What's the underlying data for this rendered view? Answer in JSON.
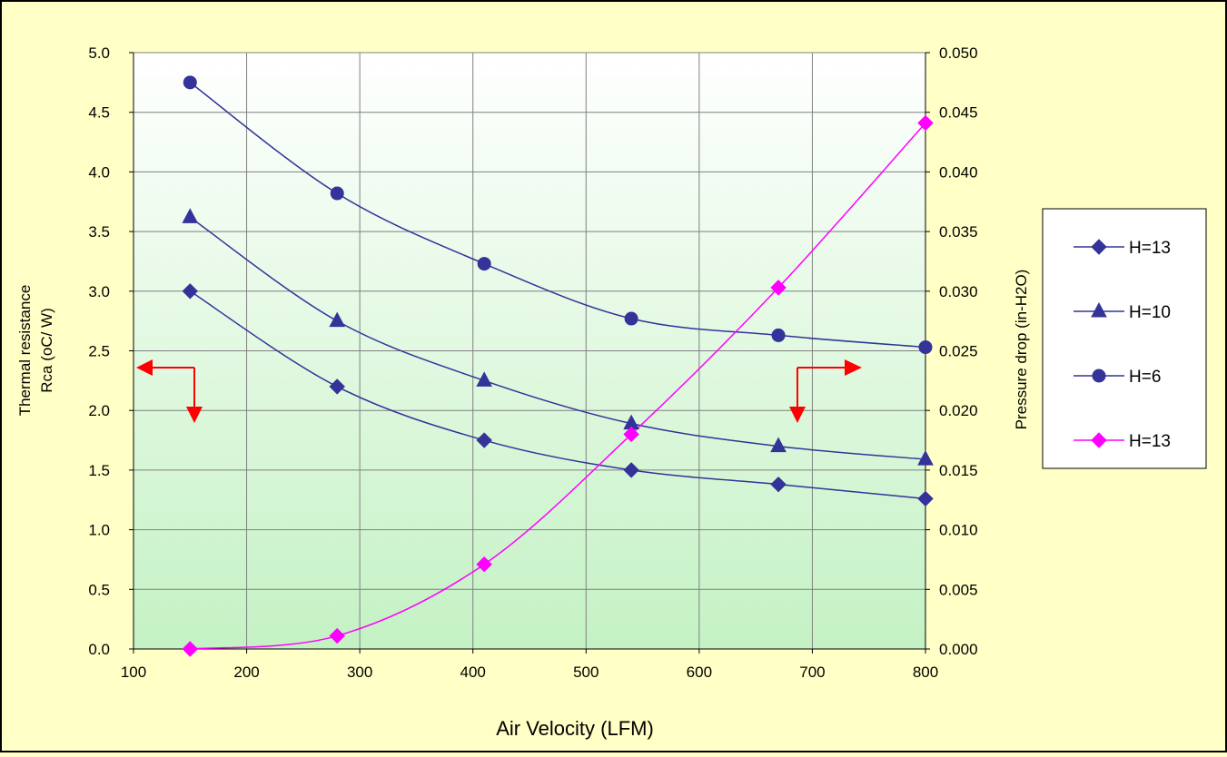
{
  "chart_data": {
    "type": "line",
    "xlabel": "Air Velocity (LFM)",
    "ylabel_lines": [
      "Thermal resistance",
      "Rca (oC/ W)"
    ],
    "y2label": "Pressure drop (in-H2O)",
    "xlim": [
      100,
      800
    ],
    "ylim": [
      0,
      5.0
    ],
    "y2lim": [
      0,
      0.05
    ],
    "x_ticks": [
      "100",
      "200",
      "300",
      "400",
      "500",
      "600",
      "700",
      "800"
    ],
    "y_ticks": [
      "0.0",
      "0.5",
      "1.0",
      "1.5",
      "2.0",
      "2.5",
      "3.0",
      "3.5",
      "4.0",
      "4.5",
      "5.0"
    ],
    "y2_ticks": [
      "0.000",
      "0.005",
      "0.010",
      "0.015",
      "0.020",
      "0.025",
      "0.030",
      "0.035",
      "0.040",
      "0.045",
      "0.050"
    ],
    "grid": true,
    "legend_position": "right",
    "series": [
      {
        "name": "H=13",
        "axis": "left",
        "marker": "diamond",
        "color": "#333399",
        "x": [
          150,
          280,
          410,
          540,
          670,
          800
        ],
        "y": [
          3.0,
          2.2,
          1.75,
          1.5,
          1.38,
          1.26
        ]
      },
      {
        "name": "H=10",
        "axis": "left",
        "marker": "triangle",
        "color": "#333399",
        "x": [
          150,
          280,
          410,
          540,
          670,
          800
        ],
        "y": [
          3.62,
          2.75,
          2.25,
          1.89,
          1.7,
          1.59
        ]
      },
      {
        "name": "H=6",
        "axis": "left",
        "marker": "circle",
        "color": "#333399",
        "x": [
          150,
          280,
          410,
          540,
          670,
          800
        ],
        "y": [
          4.75,
          3.82,
          3.23,
          2.77,
          2.63,
          2.53
        ]
      },
      {
        "name": "H=13",
        "axis": "right",
        "marker": "diamond",
        "color": "#ff00ff",
        "x": [
          150,
          280,
          410,
          540,
          670,
          800
        ],
        "y": [
          0.0,
          0.0011,
          0.0071,
          0.018,
          0.0303,
          0.0441
        ]
      }
    ]
  }
}
